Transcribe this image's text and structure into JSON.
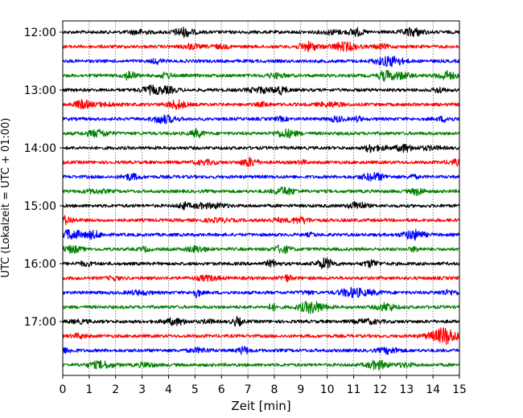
{
  "chart_data": {
    "type": "line",
    "title": "",
    "xlabel": "Zeit  [min]",
    "ylabel": "UTC (Lokalzeit = UTC + 01:00)",
    "xlim": [
      0,
      15
    ],
    "x_ticks": [
      "0",
      "1",
      "2",
      "3",
      "4",
      "5",
      "6",
      "7",
      "8",
      "9",
      "10",
      "11",
      "12",
      "13",
      "14",
      "15"
    ],
    "y_tick_labels": [
      "12:00",
      "13:00",
      "14:00",
      "15:00",
      "16:00",
      "17:00"
    ],
    "grid": "vertical dotted at each minute",
    "trace_colors": [
      "#000000",
      "#ff0000",
      "#0000ff",
      "#008000"
    ],
    "series": [
      {
        "start": "12:00",
        "color": "#000000"
      },
      {
        "start": "12:15",
        "color": "#ff0000"
      },
      {
        "start": "12:30",
        "color": "#0000ff"
      },
      {
        "start": "12:45",
        "color": "#008000"
      },
      {
        "start": "13:00",
        "color": "#000000"
      },
      {
        "start": "13:15",
        "color": "#ff0000"
      },
      {
        "start": "13:30",
        "color": "#0000ff"
      },
      {
        "start": "13:45",
        "color": "#008000"
      },
      {
        "start": "14:00",
        "color": "#000000"
      },
      {
        "start": "14:15",
        "color": "#ff0000"
      },
      {
        "start": "14:30",
        "color": "#0000ff"
      },
      {
        "start": "14:45",
        "color": "#008000"
      },
      {
        "start": "15:00",
        "color": "#000000"
      },
      {
        "start": "15:15",
        "color": "#ff0000"
      },
      {
        "start": "15:30",
        "color": "#0000ff"
      },
      {
        "start": "15:45",
        "color": "#008000"
      },
      {
        "start": "16:00",
        "color": "#000000"
      },
      {
        "start": "16:15",
        "color": "#ff0000"
      },
      {
        "start": "16:30",
        "color": "#0000ff"
      },
      {
        "start": "16:45",
        "color": "#008000"
      },
      {
        "start": "17:00",
        "color": "#000000"
      },
      {
        "start": "17:15",
        "color": "#ff0000"
      },
      {
        "start": "17:30",
        "color": "#0000ff"
      },
      {
        "start": "17:45",
        "color": "#008000"
      }
    ]
  }
}
